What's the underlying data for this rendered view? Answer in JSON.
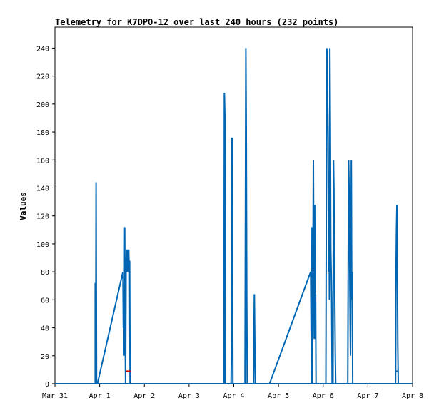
{
  "chart_data": {
    "type": "line",
    "title": "Telemetry for K7DPO-12 over last 240 hours (232 points)",
    "xlabel": "",
    "ylabel": "Values",
    "ylim": [
      0,
      255
    ],
    "yticks": [
      0,
      20,
      40,
      60,
      80,
      100,
      120,
      140,
      160,
      180,
      200,
      220,
      240
    ],
    "x_unit": "days since Mar 31 00:00 (date axis)",
    "xlim": [
      "Mar 31",
      "Apr 8"
    ],
    "xticks": [
      "Mar 31",
      "Apr 1",
      "Apr 2",
      "Apr 3",
      "Apr 4",
      "Apr 5",
      "Apr 6",
      "Apr 7",
      "Apr 8"
    ],
    "grid": false,
    "legend": "none",
    "series": [
      {
        "color": "#0066b3",
        "points": [
          [
            0.9,
            0
          ],
          [
            0.9,
            72
          ],
          [
            0.91,
            0
          ],
          [
            0.92,
            144
          ],
          [
            0.93,
            0
          ],
          [
            0.95,
            0
          ],
          [
            1.52,
            80
          ],
          [
            1.53,
            40
          ],
          [
            1.54,
            56
          ],
          [
            1.55,
            20
          ],
          [
            1.56,
            112
          ],
          [
            1.57,
            40
          ],
          [
            1.58,
            0
          ],
          [
            1.59,
            84
          ],
          [
            1.6,
            96
          ],
          [
            1.62,
            80
          ],
          [
            1.63,
            96
          ],
          [
            1.64,
            88
          ],
          [
            1.65,
            96
          ],
          [
            1.66,
            80
          ],
          [
            1.67,
            88
          ],
          [
            1.68,
            0
          ],
          [
            2.8,
            0
          ],
          [
            3.78,
            0
          ],
          [
            3.79,
            208
          ],
          [
            3.8,
            192
          ],
          [
            3.81,
            0
          ],
          [
            3.83,
            0
          ],
          [
            3.94,
            0
          ],
          [
            3.95,
            32
          ],
          [
            3.96,
            176
          ],
          [
            3.97,
            112
          ],
          [
            3.98,
            0
          ],
          [
            4.25,
            0
          ],
          [
            4.26,
            120
          ],
          [
            4.27,
            240
          ],
          [
            4.28,
            180
          ],
          [
            4.29,
            60
          ],
          [
            4.3,
            0
          ],
          [
            4.44,
            0
          ],
          [
            4.45,
            32
          ],
          [
            4.46,
            64
          ],
          [
            4.47,
            32
          ],
          [
            4.48,
            0
          ],
          [
            4.8,
            0
          ],
          [
            5.72,
            80
          ],
          [
            5.74,
            0
          ],
          [
            5.75,
            112
          ],
          [
            5.76,
            0
          ],
          [
            5.78,
            160
          ],
          [
            5.79,
            80
          ],
          [
            5.8,
            32
          ],
          [
            5.81,
            128
          ],
          [
            5.82,
            32
          ],
          [
            5.83,
            64
          ],
          [
            5.84,
            0
          ],
          [
            6.06,
            0
          ],
          [
            6.07,
            120
          ],
          [
            6.08,
            240
          ],
          [
            6.09,
            232
          ],
          [
            6.1,
            200
          ],
          [
            6.11,
            176
          ],
          [
            6.12,
            80
          ],
          [
            6.13,
            120
          ],
          [
            6.14,
            60
          ],
          [
            6.15,
            240
          ],
          [
            6.16,
            180
          ],
          [
            6.17,
            96
          ],
          [
            6.18,
            80
          ],
          [
            6.19,
            60
          ],
          [
            6.2,
            0
          ],
          [
            6.22,
            0
          ],
          [
            6.23,
            160
          ],
          [
            6.24,
            140
          ],
          [
            6.25,
            100
          ],
          [
            6.26,
            60
          ],
          [
            6.27,
            20
          ],
          [
            6.28,
            0
          ],
          [
            6.55,
            0
          ],
          [
            6.56,
            80
          ],
          [
            6.57,
            160
          ],
          [
            6.58,
            140
          ],
          [
            6.59,
            100
          ],
          [
            6.6,
            60
          ],
          [
            6.61,
            20
          ],
          [
            6.62,
            80
          ],
          [
            6.63,
            160
          ],
          [
            6.64,
            60
          ],
          [
            6.65,
            80
          ],
          [
            6.66,
            0
          ],
          [
            7.62,
            0
          ],
          [
            7.63,
            80
          ],
          [
            7.64,
            112
          ],
          [
            7.65,
            128
          ],
          [
            7.66,
            84
          ],
          [
            7.67,
            28
          ],
          [
            7.68,
            0
          ]
        ]
      },
      {
        "color": "#0066b3",
        "points": [
          [
            -0.3,
            0
          ],
          [
            8.0,
            0
          ]
        ]
      },
      {
        "color": "#cc0000",
        "points": [
          [
            1.58,
            9
          ],
          [
            1.7,
            9
          ]
        ]
      },
      {
        "color": "#0066b3",
        "points": [
          [
            7.62,
            9
          ],
          [
            7.68,
            9
          ]
        ]
      }
    ]
  }
}
